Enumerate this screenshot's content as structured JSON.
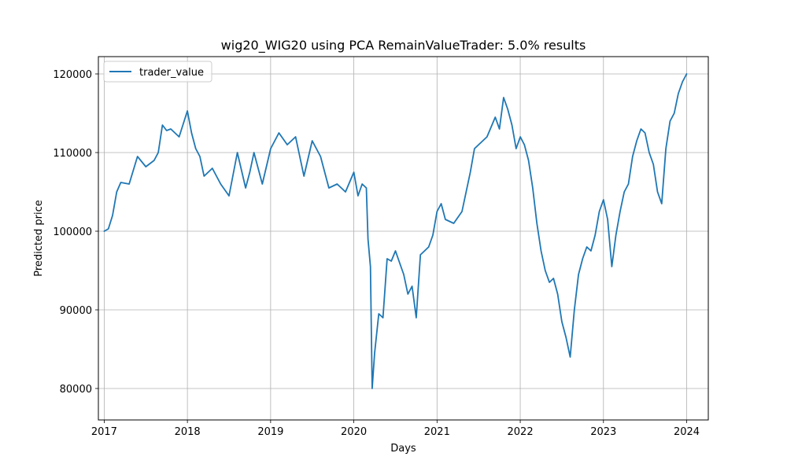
{
  "chart_data": {
    "type": "line",
    "title": "wig20_WIG20 using PCA RemainValueTrader: 5.0% results",
    "xlabel": "Days",
    "ylabel": "Predicted price",
    "xlim": [
      2016.93,
      2024.26
    ],
    "ylim": [
      76000,
      122200
    ],
    "xticks": [
      2017,
      2018,
      2019,
      2020,
      2021,
      2022,
      2023,
      2024
    ],
    "xtick_labels": [
      "2017",
      "2018",
      "2019",
      "2020",
      "2021",
      "2022",
      "2023",
      "2024"
    ],
    "yticks": [
      80000,
      90000,
      100000,
      110000,
      120000
    ],
    "ytick_labels": [
      "80000",
      "90000",
      "100000",
      "110000",
      "120000"
    ],
    "grid": true,
    "legend": {
      "position": "top-left"
    },
    "series": [
      {
        "name": "trader_value",
        "color": "#1f77b4",
        "x": [
          2017.0,
          2017.05,
          2017.1,
          2017.15,
          2017.2,
          2017.3,
          2017.4,
          2017.5,
          2017.6,
          2017.65,
          2017.7,
          2017.75,
          2017.8,
          2017.9,
          2018.0,
          2018.05,
          2018.1,
          2018.15,
          2018.2,
          2018.3,
          2018.4,
          2018.5,
          2018.6,
          2018.7,
          2018.75,
          2018.8,
          2018.9,
          2019.0,
          2019.1,
          2019.2,
          2019.3,
          2019.4,
          2019.5,
          2019.6,
          2019.7,
          2019.8,
          2019.9,
          2020.0,
          2020.05,
          2020.1,
          2020.15,
          2020.17,
          2020.2,
          2020.22,
          2020.25,
          2020.3,
          2020.35,
          2020.4,
          2020.45,
          2020.5,
          2020.55,
          2020.6,
          2020.65,
          2020.7,
          2020.75,
          2020.8,
          2020.85,
          2020.9,
          2020.95,
          2021.0,
          2021.05,
          2021.1,
          2021.2,
          2021.3,
          2021.4,
          2021.45,
          2021.5,
          2021.6,
          2021.7,
          2021.75,
          2021.8,
          2021.85,
          2021.9,
          2021.95,
          2022.0,
          2022.05,
          2022.1,
          2022.15,
          2022.2,
          2022.25,
          2022.3,
          2022.35,
          2022.4,
          2022.45,
          2022.5,
          2022.55,
          2022.6,
          2022.65,
          2022.7,
          2022.75,
          2022.8,
          2022.85,
          2022.9,
          2022.95,
          2023.0,
          2023.05,
          2023.1,
          2023.15,
          2023.2,
          2023.25,
          2023.3,
          2023.35,
          2023.4,
          2023.45,
          2023.5,
          2023.55,
          2023.6,
          2023.65,
          2023.7,
          2023.75,
          2023.8,
          2023.85,
          2023.9,
          2023.95,
          2024.0
        ],
        "y": [
          100000,
          100300,
          102000,
          105000,
          106200,
          106000,
          109500,
          108200,
          109000,
          110000,
          113500,
          112800,
          113000,
          112000,
          115300,
          112500,
          110500,
          109500,
          107000,
          108000,
          106000,
          104500,
          110000,
          105500,
          107500,
          110000,
          106000,
          110500,
          112500,
          111000,
          112000,
          107000,
          111500,
          109500,
          105500,
          106000,
          105000,
          107500,
          104500,
          106000,
          105500,
          99000,
          95500,
          80000,
          84500,
          89500,
          89000,
          96500,
          96200,
          97500,
          96000,
          94500,
          92000,
          93000,
          89000,
          97000,
          97500,
          98000,
          99500,
          102500,
          103500,
          101500,
          101000,
          102500,
          107500,
          110500,
          111000,
          112000,
          114500,
          113000,
          117000,
          115500,
          113500,
          110500,
          112000,
          111000,
          109000,
          105500,
          101000,
          97500,
          95000,
          93500,
          94000,
          92000,
          88500,
          86500,
          84000,
          90000,
          94500,
          96500,
          98000,
          97500,
          99500,
          102500,
          104000,
          101500,
          95500,
          99500,
          102500,
          105000,
          106000,
          109500,
          111500,
          113000,
          112500,
          110000,
          108500,
          105000,
          103500,
          110500,
          114000,
          115000,
          117500,
          119000,
          120000
        ]
      }
    ]
  }
}
